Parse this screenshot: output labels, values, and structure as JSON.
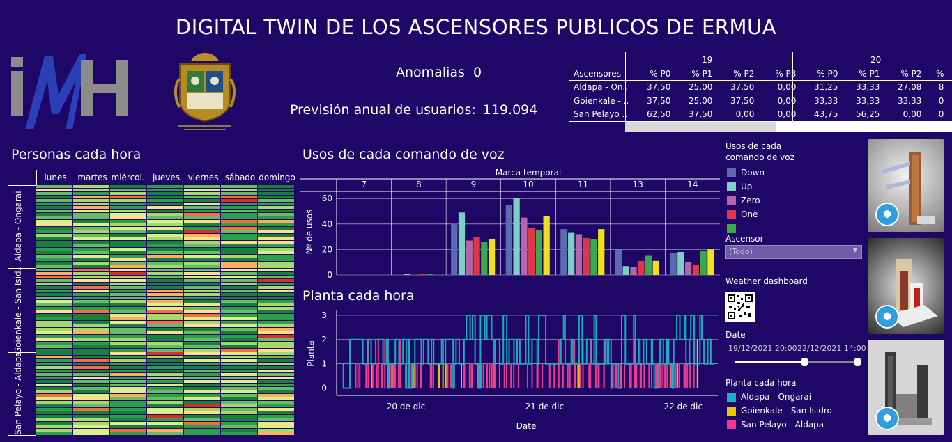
{
  "title": "DIGITAL TWIN DE LOS ASCENSORES PUBLICOS DE ERMUA",
  "logo": {
    "text": "IMH"
  },
  "kpis": {
    "anomalias_label": "Anomalias",
    "anomalias_value": "0",
    "prevision_label": "Previsión anual de usuarios:",
    "prevision_value": "119.094"
  },
  "pct_table": {
    "days": [
      "19",
      "20"
    ],
    "row_header": "Ascensores",
    "columns_19": [
      "% P0",
      "% P1",
      "% P2",
      "% P3"
    ],
    "columns_20": [
      "% P0",
      "% P1",
      "% P2",
      "%"
    ],
    "rows": [
      {
        "name": "Aldapa - On..",
        "v19": [
          "37,50",
          "25,00",
          "37,50",
          "0,00"
        ],
        "v20": [
          "31,25",
          "33,33",
          "27,08",
          "8"
        ]
      },
      {
        "name": "Goienkale - ..",
        "v19": [
          "37,50",
          "25,00",
          "37,50",
          "0,00"
        ],
        "v20": [
          "33,33",
          "33,33",
          "33,33",
          "0"
        ]
      },
      {
        "name": "San Pelayo ..",
        "v19": [
          "62,50",
          "37,50",
          "0,00",
          "0,00"
        ],
        "v20": [
          "43,75",
          "56,25",
          "0,00",
          "0"
        ]
      }
    ]
  },
  "heatmap": {
    "title": "Personas cada hora",
    "days": [
      "lunes",
      "martes",
      "miércol..",
      "jueves",
      "viernes",
      "sábado",
      "domingo"
    ],
    "groups": [
      "Aldapa - Ongarai",
      "Goienkale - San Isid..",
      "San Pelayo - Aldapa"
    ],
    "palette": [
      "#1a7f3c",
      "#2e9e4a",
      "#66bd63",
      "#a6d96a",
      "#d9ef8b",
      "#fee08b",
      "#fdae61",
      "#f46d43",
      "#d73027"
    ]
  },
  "voice_chart": {
    "title": "Usos de cada comando de voz",
    "header": "Marca temporal",
    "ylabel": "Nº de usos"
  },
  "floor_chart": {
    "title": "Planta cada hora",
    "ylabel": "Planta",
    "xlabel": "Date"
  },
  "voice_legend": {
    "title_line1": "Usos de cada",
    "title_line2": "comando de voz",
    "items": [
      {
        "label": "Down",
        "color": "#5b6bb0"
      },
      {
        "label": "Up",
        "color": "#7cd1c4"
      },
      {
        "label": "Zero",
        "color": "#b566a8"
      },
      {
        "label": "One",
        "color": "#e0364b"
      }
    ],
    "partial_color": "#3aaa48"
  },
  "ascensor_filter": {
    "label": "Ascensor",
    "value": "(Todo)"
  },
  "weather": {
    "label": "Weather dashboard"
  },
  "date_filter": {
    "label": "Date",
    "start": "19/12/2021 20:00",
    "end": "22/12/2021 14:00",
    "range_fraction": [
      0.57,
      1.0
    ]
  },
  "floor_legend": {
    "title": "Planta cada hora",
    "items": [
      {
        "label": "Aldapa - Ongarai",
        "color": "#18b4c4"
      },
      {
        "label": "Goienkale - San Isidro",
        "color": "#f2c300"
      },
      {
        "label": "San Pelayo - Aldapa",
        "color": "#ee3b8f"
      }
    ]
  },
  "chart_data": [
    {
      "type": "bar",
      "title": "Usos de cada comando de voz",
      "header": "Marca temporal",
      "ylabel": "Nº de usos",
      "ylim": [
        0,
        65
      ],
      "yticks": [
        0,
        20,
        40,
        60
      ],
      "categories": [
        "7",
        "8",
        "9",
        "10",
        "11",
        "13",
        "14"
      ],
      "series": [
        {
          "name": "Down",
          "color": "#5b6bb0",
          "values": [
            0,
            0,
            40,
            55,
            36,
            20,
            17
          ]
        },
        {
          "name": "Up",
          "color": "#7cd1c4",
          "values": [
            0,
            1,
            49,
            60,
            33,
            7,
            18
          ]
        },
        {
          "name": "Zero",
          "color": "#b566a8",
          "values": [
            0,
            0,
            27,
            45,
            32,
            6,
            10
          ]
        },
        {
          "name": "One",
          "color": "#e0364b",
          "values": [
            0,
            1,
            30,
            37,
            29,
            11,
            8
          ]
        },
        {
          "color": "#3aaa48",
          "values": [
            0,
            1,
            26,
            35,
            28,
            15,
            19
          ]
        },
        {
          "color": "#f0e01e",
          "values": [
            0,
            0,
            28,
            46,
            36,
            11,
            20
          ]
        }
      ]
    },
    {
      "type": "line",
      "title": "Planta cada hora",
      "xlabel": "Date",
      "ylabel": "Planta",
      "ylim": [
        -0.3,
        3.2
      ],
      "yticks": [
        0,
        1,
        2,
        3
      ],
      "xticks": [
        "20 de dic",
        "21 de dic",
        "22 de dic"
      ],
      "x_range_hours": [
        0,
        66
      ],
      "x_tick_hours": [
        12,
        36,
        60
      ]
    }
  ]
}
